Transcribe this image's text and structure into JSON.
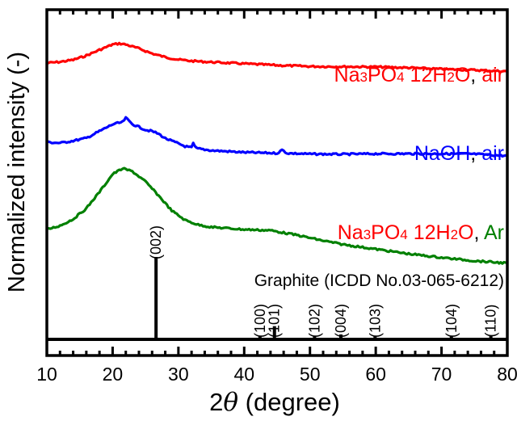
{
  "chart_data": {
    "type": "line",
    "xlabel_prefix": "2",
    "xlabel_symbol": "θ",
    "xlabel_suffix": " (degree)",
    "ylabel": "Normalized intensity (-)",
    "xlim": [
      10,
      80
    ],
    "xticks": [
      "10",
      "20",
      "30",
      "40",
      "50",
      "60",
      "70",
      "80"
    ],
    "grid": false,
    "series": [
      {
        "name": "Na3PO4 12H2O, air",
        "label_parts": [
          {
            "text": "Na",
            "color": "#ff0000",
            "sub": false
          },
          {
            "text": "3",
            "color": "#ff0000",
            "sub": true
          },
          {
            "text": "PO",
            "color": "#ff0000",
            "sub": false
          },
          {
            "text": "4",
            "color": "#ff0000",
            "sub": true
          },
          {
            "text": " 12H",
            "color": "#ff0000",
            "sub": false
          },
          {
            "text": "2",
            "color": "#ff0000",
            "sub": true
          },
          {
            "text": "O",
            "color": "#ff0000",
            "sub": false
          },
          {
            "text": ", ",
            "color": "#000000",
            "sub": false
          },
          {
            "text": "air",
            "color": "#ff0000",
            "sub": false
          }
        ],
        "color": "#ff0000",
        "points": [
          [
            10,
            0.0
          ],
          [
            12,
            0.05
          ],
          [
            14,
            0.14
          ],
          [
            16,
            0.33
          ],
          [
            18,
            0.58
          ],
          [
            20,
            0.82
          ],
          [
            21,
            0.86
          ],
          [
            22,
            0.82
          ],
          [
            24,
            0.64
          ],
          [
            26,
            0.42
          ],
          [
            28,
            0.26
          ],
          [
            30,
            0.15
          ],
          [
            32,
            0.09
          ],
          [
            35,
            0.04
          ],
          [
            40,
            -0.03
          ],
          [
            45,
            -0.1
          ],
          [
            50,
            -0.15
          ],
          [
            55,
            -0.16
          ],
          [
            60,
            -0.17
          ],
          [
            65,
            -0.21
          ],
          [
            70,
            -0.27
          ],
          [
            75,
            -0.31
          ],
          [
            80,
            -0.37
          ]
        ]
      },
      {
        "name": "NaOH, air",
        "label_parts": [
          {
            "text": "NaOH",
            "color": "#0000ff",
            "sub": false
          },
          {
            "text": ", ",
            "color": "#000000",
            "sub": false
          },
          {
            "text": "air",
            "color": "#0000ff",
            "sub": false
          }
        ],
        "color": "#0000ff",
        "points": [
          [
            10,
            0.0
          ],
          [
            12,
            -0.03
          ],
          [
            14,
            0.05
          ],
          [
            16,
            0.15
          ],
          [
            18,
            0.4
          ],
          [
            20,
            0.65
          ],
          [
            21.5,
            0.73
          ],
          [
            22,
            0.88
          ],
          [
            23,
            0.66
          ],
          [
            25,
            0.45
          ],
          [
            26,
            0.4
          ],
          [
            27,
            0.3
          ],
          [
            28,
            0.14
          ],
          [
            30,
            -0.05
          ],
          [
            31,
            -0.15
          ],
          [
            32,
            -0.2
          ],
          [
            32.3,
            -0.02
          ],
          [
            32.6,
            -0.22
          ],
          [
            35,
            -0.3
          ],
          [
            40,
            -0.37
          ],
          [
            45,
            -0.4
          ],
          [
            45.8,
            -0.28
          ],
          [
            46.5,
            -0.4
          ],
          [
            50,
            -0.43
          ],
          [
            55,
            -0.44
          ],
          [
            60,
            -0.42
          ],
          [
            65,
            -0.42
          ],
          [
            70,
            -0.42
          ],
          [
            75,
            -0.43
          ],
          [
            80,
            -0.5
          ]
        ]
      },
      {
        "name": "Na3PO4 12H2O, Ar",
        "label_parts": [
          {
            "text": "Na",
            "color": "#ff0000",
            "sub": false
          },
          {
            "text": "3",
            "color": "#ff0000",
            "sub": true
          },
          {
            "text": "PO",
            "color": "#ff0000",
            "sub": false
          },
          {
            "text": "4",
            "color": "#ff0000",
            "sub": true
          },
          {
            "text": " 12H",
            "color": "#ff0000",
            "sub": false
          },
          {
            "text": "2",
            "color": "#ff0000",
            "sub": true
          },
          {
            "text": "O",
            "color": "#ff0000",
            "sub": false
          },
          {
            "text": ", ",
            "color": "#000000",
            "sub": false
          },
          {
            "text": "Ar",
            "color": "#008000",
            "sub": false
          }
        ],
        "color": "#008000",
        "points": [
          [
            10,
            0.0
          ],
          [
            12,
            0.08
          ],
          [
            14,
            0.22
          ],
          [
            16,
            0.45
          ],
          [
            18,
            0.8
          ],
          [
            20,
            1.18
          ],
          [
            21.5,
            1.3
          ],
          [
            23,
            1.24
          ],
          [
            25,
            1.02
          ],
          [
            27,
            0.72
          ],
          [
            29,
            0.4
          ],
          [
            31,
            0.2
          ],
          [
            33,
            0.1
          ],
          [
            35,
            0.05
          ],
          [
            38,
            0.02
          ],
          [
            40,
            0.0
          ],
          [
            44,
            -0.02
          ],
          [
            48,
            -0.12
          ],
          [
            52,
            -0.24
          ],
          [
            55,
            -0.32
          ],
          [
            60,
            -0.42
          ],
          [
            65,
            -0.52
          ],
          [
            70,
            -0.6
          ],
          [
            75,
            -0.67
          ],
          [
            80,
            -0.72
          ]
        ]
      }
    ],
    "reference": {
      "label": "Graphite (ICDD No.03-065-6212)",
      "peaks": [
        {
          "hkl": "(002)",
          "x": 26.6,
          "h": 1.0
        },
        {
          "hkl": "(100)",
          "x": 42.4,
          "h": 0.03
        },
        {
          "hkl": "(101)",
          "x": 44.6,
          "h": 0.16
        },
        {
          "hkl": "(102)",
          "x": 50.7,
          "h": 0.04
        },
        {
          "hkl": "(004)",
          "x": 54.7,
          "h": 0.06
        },
        {
          "hkl": "(103)",
          "x": 59.9,
          "h": 0.04
        },
        {
          "hkl": "(104)",
          "x": 71.5,
          "h": 0.02
        },
        {
          "hkl": "(110)",
          "x": 77.5,
          "h": 0.03
        }
      ]
    }
  }
}
